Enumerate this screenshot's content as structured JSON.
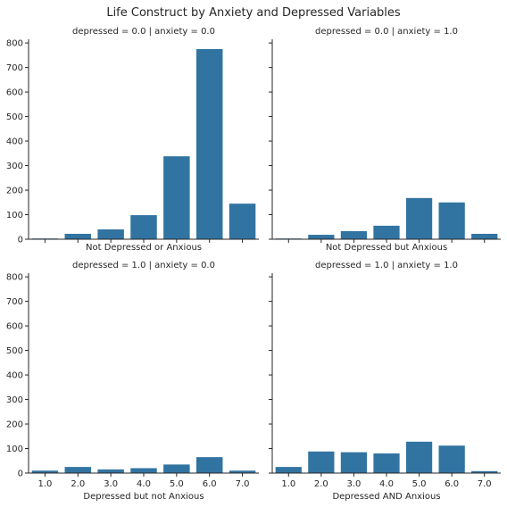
{
  "chart_data": {
    "type": "bar",
    "title": "Life Construct by Anxiety and Depressed Variables",
    "categories": [
      "1.0",
      "2.0",
      "3.0",
      "4.0",
      "5.0",
      "6.0",
      "7.0"
    ],
    "ylim": [
      0,
      815
    ],
    "yticks": [
      0,
      100,
      200,
      300,
      400,
      500,
      600,
      700,
      800
    ],
    "bar_color": "#3274a1",
    "grid": false,
    "sharex": true,
    "sharey": true,
    "panels": [
      {
        "facet_title": "depressed = 0.0 | anxiety = 0.0",
        "xlabel": "Not Depressed or Anxious",
        "values": [
          3,
          22,
          40,
          98,
          338,
          775,
          145
        ]
      },
      {
        "facet_title": "depressed = 0.0 | anxiety = 1.0",
        "xlabel": "Not Depressed but Anxious",
        "values": [
          3,
          18,
          33,
          55,
          168,
          150,
          22
        ]
      },
      {
        "facet_title": "depressed = 1.0 | anxiety = 0.0",
        "xlabel": "Depressed but not Anxious",
        "values": [
          10,
          25,
          15,
          20,
          35,
          65,
          10
        ]
      },
      {
        "facet_title": "depressed = 1.0 | anxiety = 1.0",
        "xlabel": "Depressed AND Anxious",
        "values": [
          25,
          88,
          85,
          80,
          128,
          112,
          8
        ]
      }
    ]
  }
}
